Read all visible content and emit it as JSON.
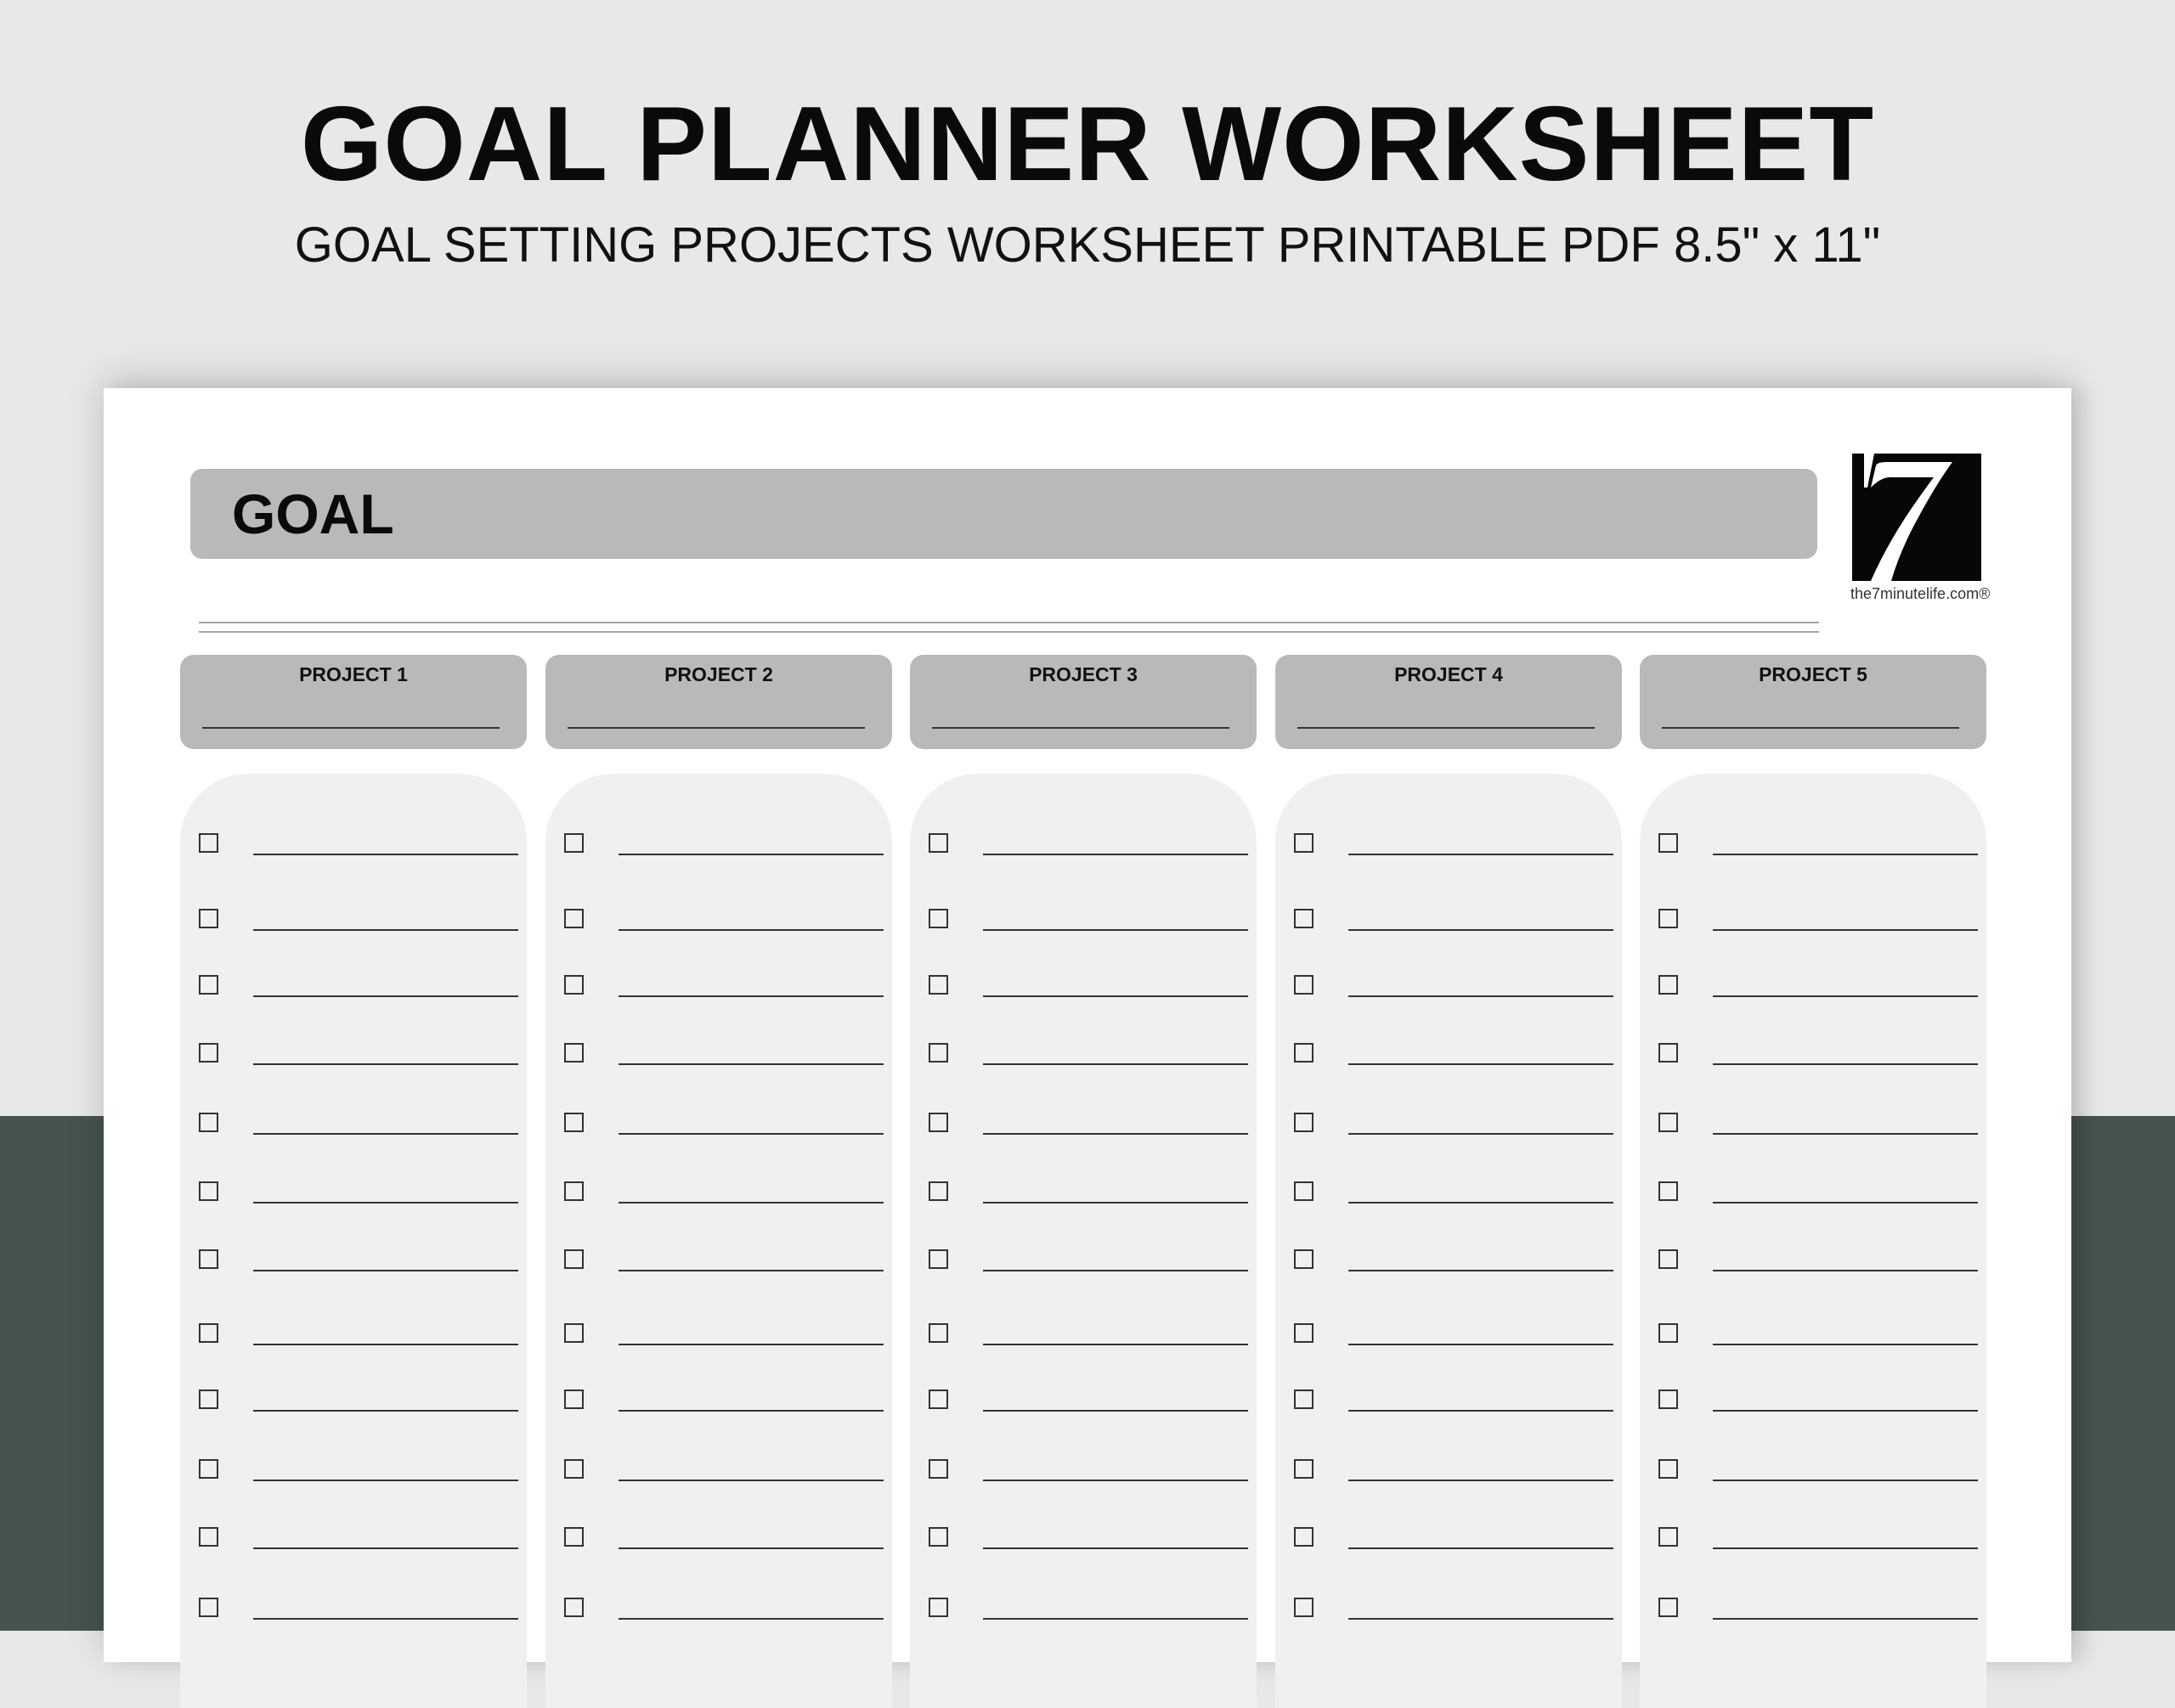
{
  "header": {
    "title": "GOAL PLANNER WORKSHEET",
    "subtitle": "GOAL SETTING PROJECTS WORKSHEET PRINTABLE PDF 8.5\" x 11\""
  },
  "worksheet": {
    "goal_label": "GOAL",
    "logo": {
      "text": "the7minutelife.com®",
      "glyph": "7"
    },
    "projects": [
      {
        "label": "PROJECT 1",
        "tasks": [
          false,
          false,
          false,
          false,
          false,
          false,
          false,
          false,
          false,
          false,
          false,
          false
        ]
      },
      {
        "label": "PROJECT 2",
        "tasks": [
          false,
          false,
          false,
          false,
          false,
          false,
          false,
          false,
          false,
          false,
          false,
          false
        ]
      },
      {
        "label": "PROJECT 3",
        "tasks": [
          false,
          false,
          false,
          false,
          false,
          false,
          false,
          false,
          false,
          false,
          false,
          false
        ]
      },
      {
        "label": "PROJECT 4",
        "tasks": [
          false,
          false,
          false,
          false,
          false,
          false,
          false,
          false,
          false,
          false,
          false,
          false
        ]
      },
      {
        "label": "PROJECT 5",
        "tasks": [
          false,
          false,
          false,
          false,
          false,
          false,
          false,
          false,
          false,
          false,
          false,
          false
        ]
      }
    ]
  },
  "colors": {
    "background_top": "#e8e8e8",
    "background_bottom": "#45544e",
    "header_fill": "#b9b9b9",
    "list_fill": "#eff0f2"
  }
}
